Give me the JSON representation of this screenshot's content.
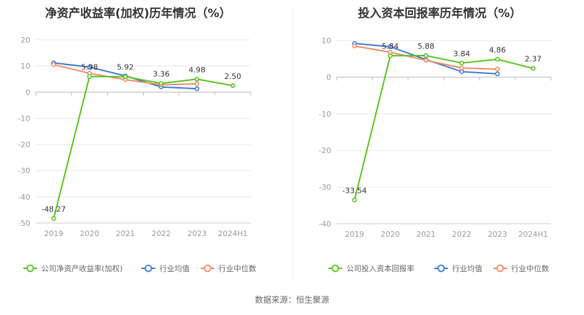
{
  "source": "数据来源：恒生聚源",
  "colors": {
    "company": "#52c41a",
    "avg": "#3a78d8",
    "median": "#f08a5d",
    "grid": "#e8e8e8",
    "axis": "#cccccc"
  },
  "legend_labels": [
    "行业均值",
    "行业中位数"
  ],
  "chart_data": [
    {
      "type": "line",
      "title": "净资产收益率(加权)历年情况（%）",
      "categories": [
        "2019",
        "2020",
        "2021",
        "2022",
        "2023",
        "2024H1"
      ],
      "yticks": [
        "20",
        "10",
        "0",
        "-10",
        "-20",
        "-30",
        "-40",
        "-50"
      ],
      "ylim": [
        -50,
        20
      ],
      "series": [
        {
          "name": "公司净资产收益率(加权)",
          "values": [
            -48.27,
            5.98,
            5.92,
            3.36,
            4.98,
            2.5
          ],
          "labels": [
            "-48.27",
            "5.98",
            "5.92",
            "3.36",
            "4.98",
            "2.50"
          ]
        },
        {
          "name": "行业均值",
          "values": [
            11.2,
            9.6,
            6.2,
            2.0,
            1.3,
            null
          ]
        },
        {
          "name": "行业中位数",
          "values": [
            10.5,
            7.2,
            4.8,
            2.8,
            3.2,
            null
          ]
        }
      ]
    },
    {
      "type": "line",
      "title": "投入资本回报率历年情况（%）",
      "categories": [
        "2019",
        "2020",
        "2021",
        "2022",
        "2023",
        "2024H1"
      ],
      "yticks": [
        "10",
        "0",
        "-10",
        "-20",
        "-30",
        "-40"
      ],
      "ylim": [
        -40,
        10
      ],
      "series": [
        {
          "name": "公司投入资本回报率",
          "values": [
            -33.54,
            5.84,
            5.88,
            3.84,
            4.86,
            2.37
          ],
          "labels": [
            "-33.54",
            "5.84",
            "5.88",
            "3.84",
            "4.86",
            "2.37"
          ]
        },
        {
          "name": "行业均值",
          "values": [
            9.2,
            8.3,
            4.8,
            1.5,
            0.9,
            null
          ]
        },
        {
          "name": "行业中位数",
          "values": [
            8.5,
            6.8,
            4.6,
            2.5,
            2.2,
            null
          ]
        }
      ]
    }
  ]
}
